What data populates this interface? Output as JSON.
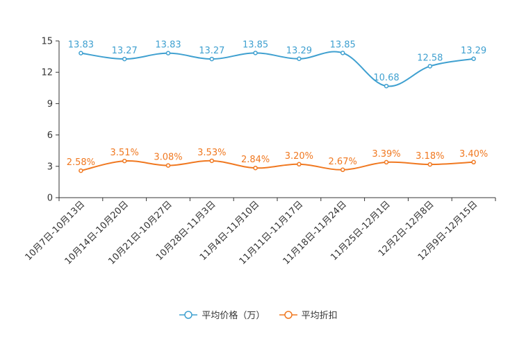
{
  "chart_data": {
    "type": "line",
    "categories": [
      "10月7日-10月13日",
      "10月14日-10月20日",
      "10月21日-10月27日",
      "10月28日-11月3日",
      "11月4日-11月10日",
      "11月11日-11月17日",
      "11月18日-11月24日",
      "11月25日-12月1日",
      "12月2日-12月8日",
      "12月9日-12月15日"
    ],
    "ylim": [
      0,
      15
    ],
    "yticks": [
      0,
      3,
      6,
      9,
      12,
      15
    ],
    "series": [
      {
        "name": "平均价格（万）",
        "color": "#3fa0d0",
        "values": [
          13.83,
          13.27,
          13.83,
          13.27,
          13.85,
          13.29,
          13.85,
          10.68,
          12.58,
          13.29
        ],
        "labels": [
          "13.83",
          "13.27",
          "13.83",
          "13.27",
          "13.85",
          "13.29",
          "13.85",
          "10.68",
          "12.58",
          "13.29"
        ]
      },
      {
        "name": "平均折扣",
        "color": "#f07820",
        "values": [
          2.58,
          3.51,
          3.08,
          3.53,
          2.84,
          3.2,
          2.67,
          3.39,
          3.18,
          3.4
        ],
        "labels": [
          "2.58%",
          "3.51%",
          "3.08%",
          "3.53%",
          "2.84%",
          "3.20%",
          "2.67%",
          "3.39%",
          "3.18%",
          "3.40%"
        ]
      }
    ]
  }
}
